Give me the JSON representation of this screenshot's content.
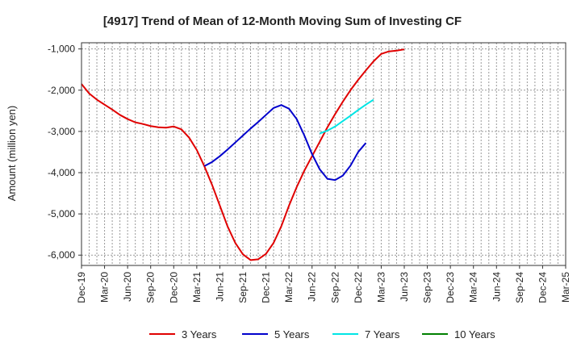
{
  "chart_data": {
    "type": "line",
    "title": "[4917]  Trend of Mean of 12-Month Moving Sum of Investing CF",
    "ylabel": "Amount (million yen)",
    "xlabel": "",
    "ylim": [
      -6250,
      -850
    ],
    "yticks": [
      -1000,
      -2000,
      -3000,
      -4000,
      -5000,
      -6000
    ],
    "ytick_labels": [
      "-1,000",
      "-2,000",
      "-3,000",
      "-4,000",
      "-5,000",
      "-6,000"
    ],
    "xtick_labels": [
      "Dec-19",
      "Mar-20",
      "Jun-20",
      "Sep-20",
      "Dec-20",
      "Mar-21",
      "Jun-21",
      "Sep-21",
      "Dec-21",
      "Mar-22",
      "Jun-22",
      "Sep-22",
      "Dec-22",
      "Mar-23",
      "Jun-23",
      "Sep-23",
      "Dec-23",
      "Mar-24",
      "Jun-24",
      "Sep-24",
      "Dec-24",
      "Mar-25"
    ],
    "grid": true,
    "legend_position": "bottom",
    "series": [
      {
        "name": "3 Years",
        "color": "#e00000",
        "start_index": 0,
        "values": [
          -1850,
          -2080,
          -2230,
          -2350,
          -2470,
          -2600,
          -2700,
          -2780,
          -2820,
          -2870,
          -2900,
          -2910,
          -2880,
          -2950,
          -3150,
          -3450,
          -3850,
          -4300,
          -4800,
          -5300,
          -5700,
          -5980,
          -6120,
          -6100,
          -5970,
          -5700,
          -5300,
          -4800,
          -4350,
          -3950,
          -3600,
          -3250,
          -2900,
          -2580,
          -2280,
          -2000,
          -1750,
          -1520,
          -1300,
          -1120,
          -1060,
          -1040,
          -1010
        ]
      },
      {
        "name": "5 Years",
        "color": "#0000cc",
        "start_index": 16,
        "values": [
          -3840,
          -3740,
          -3600,
          -3440,
          -3270,
          -3100,
          -2930,
          -2770,
          -2600,
          -2430,
          -2360,
          -2450,
          -2700,
          -3100,
          -3550,
          -3920,
          -4150,
          -4180,
          -4070,
          -3830,
          -3500,
          -3280
        ]
      },
      {
        "name": "7 Years",
        "color": "#00e5e5",
        "start_index": 31,
        "values": [
          -3050,
          -2980,
          -2880,
          -2750,
          -2620,
          -2480,
          -2350,
          -2230
        ]
      },
      {
        "name": "10 Years",
        "color": "#008000",
        "start_index": 0,
        "values": []
      }
    ]
  }
}
